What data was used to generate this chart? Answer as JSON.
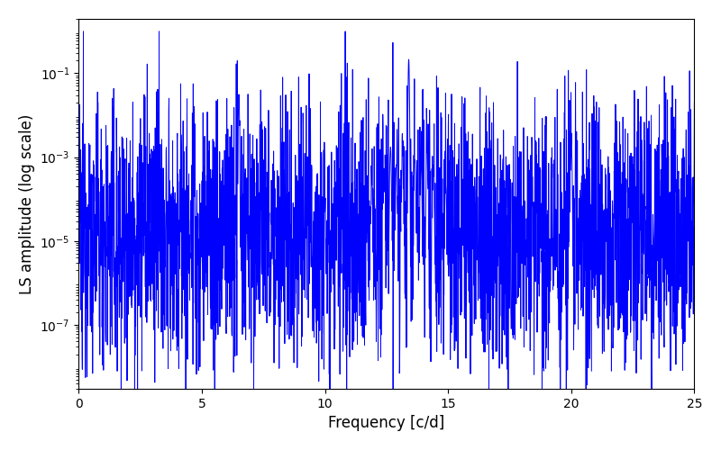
{
  "title": "",
  "xlabel": "Frequency [c/d]",
  "ylabel": "LS amplitude (log scale)",
  "xlim": [
    0,
    25
  ],
  "ylim": [
    3e-09,
    2.0
  ],
  "line_color": "#0000ff",
  "line_width": 0.7,
  "yscale": "log",
  "figsize": [
    8.0,
    5.0
  ],
  "dpi": 100,
  "seed": 12345,
  "n_points": 3000,
  "background_color": "#ffffff",
  "main_peak_freq": 13.4,
  "main_peak_amp": 0.22,
  "secondary_peak_freq": 6.5,
  "secondary_peak_amp": 0.032,
  "tertiary_peak_freq": 20.0,
  "tertiary_peak_amp": 0.0022,
  "noise_base_log_mean": -4.7,
  "noise_base_log_std": 1.5,
  "yticks": [
    1e-07,
    1e-05,
    0.001,
    0.1
  ],
  "ytick_labels": [
    "$10^{-7}$",
    "$10^{-5}$",
    "$10^{-3}$",
    "$10^{-1}$"
  ]
}
